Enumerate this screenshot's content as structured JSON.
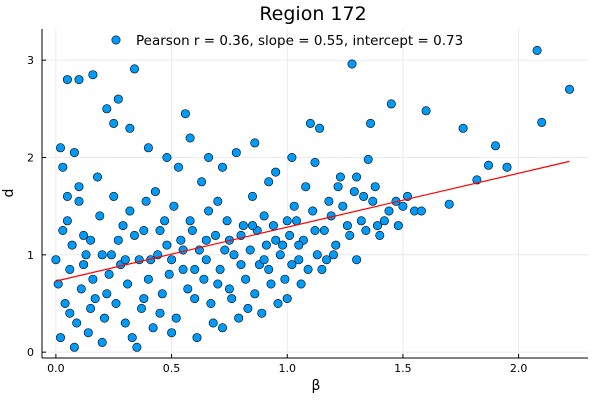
{
  "chart_data": {
    "type": "scatter",
    "title": "Region 172",
    "xlabel": "β",
    "ylabel": "d",
    "xlim": [
      -0.06,
      2.3
    ],
    "ylim": [
      -0.06,
      3.32
    ],
    "xticks": [
      0,
      0.5,
      1,
      1.5,
      2
    ],
    "xtick_labels": [
      "0.0",
      "0.5",
      "1.0",
      "1.5",
      "2.0"
    ],
    "yticks": [
      0,
      1,
      2,
      3
    ],
    "ytick_labels": [
      "0",
      "1",
      "2",
      "3"
    ],
    "grid": true,
    "legend_position": "top",
    "colors": {
      "points": "#009af9",
      "fit_line": "#ff0000"
    },
    "series": [
      {
        "name": "Pearson r = 0.36, slope = 0.55, intercept = 0.73",
        "kind": "scatter",
        "points": [
          [
            2.08,
            3.1
          ],
          [
            2.22,
            2.7
          ],
          [
            1.28,
            2.96
          ],
          [
            0.34,
            2.91
          ],
          [
            0.05,
            2.8
          ],
          [
            0.1,
            2.8
          ],
          [
            0.16,
            2.85
          ],
          [
            2.1,
            2.36
          ],
          [
            1.45,
            2.55
          ],
          [
            1.6,
            2.48
          ],
          [
            1.76,
            2.3
          ],
          [
            0.27,
            2.6
          ],
          [
            0.22,
            2.5
          ],
          [
            0.56,
            2.45
          ],
          [
            1.9,
            2.12
          ],
          [
            1.87,
            1.92
          ],
          [
            1.95,
            1.9
          ],
          [
            1.82,
            1.77
          ],
          [
            1.7,
            1.52
          ],
          [
            1.55,
            1.45
          ],
          [
            1.47,
            1.55
          ],
          [
            1.39,
            1.3
          ],
          [
            1.38,
            1.7
          ],
          [
            1.36,
            2.35
          ],
          [
            1.35,
            1.98
          ],
          [
            1.1,
            2.35
          ],
          [
            1.14,
            2.3
          ],
          [
            0.02,
            2.1
          ],
          [
            0.0,
            0.95
          ],
          [
            0.01,
            0.7
          ],
          [
            0.03,
            1.9
          ],
          [
            0.05,
            1.35
          ],
          [
            0.08,
            2.05
          ],
          [
            0.1,
            1.55
          ],
          [
            0.12,
            1.2
          ],
          [
            0.15,
            0.45
          ],
          [
            0.18,
            1.8
          ],
          [
            0.2,
            0.1
          ],
          [
            0.22,
            0.6
          ],
          [
            0.25,
            1.6
          ],
          [
            0.28,
            0.9
          ],
          [
            0.3,
            0.3
          ],
          [
            0.32,
            1.45
          ],
          [
            0.35,
            0.05
          ],
          [
            0.38,
            1.25
          ],
          [
            0.4,
            0.75
          ],
          [
            0.43,
            1.65
          ],
          [
            0.45,
            0.4
          ],
          [
            0.48,
            1.1
          ],
          [
            0.5,
            0.2
          ],
          [
            0.53,
            1.9
          ],
          [
            0.55,
            0.85
          ],
          [
            0.58,
            1.35
          ],
          [
            0.6,
            0.55
          ],
          [
            0.63,
            1.75
          ],
          [
            0.65,
            0.95
          ],
          [
            0.68,
            0.3
          ],
          [
            0.7,
            1.55
          ],
          [
            0.73,
            1.05
          ],
          [
            0.75,
            0.65
          ],
          [
            0.78,
            2.05
          ],
          [
            0.8,
            1.2
          ],
          [
            0.83,
            0.45
          ],
          [
            0.85,
            1.6
          ],
          [
            0.88,
            0.9
          ],
          [
            0.9,
            1.4
          ],
          [
            0.93,
            0.7
          ],
          [
            0.95,
            1.85
          ],
          [
            0.98,
            1.1
          ],
          [
            1.0,
            0.55
          ],
          [
            1.03,
            1.5
          ],
          [
            1.05,
            0.95
          ],
          [
            1.08,
            1.7
          ],
          [
            1.12,
            1.25
          ],
          [
            1.15,
            0.85
          ],
          [
            1.18,
            1.55
          ],
          [
            1.2,
            1.0
          ],
          [
            1.23,
            1.8
          ],
          [
            1.26,
            1.3
          ],
          [
            1.3,
            0.95
          ],
          [
            1.33,
            1.6
          ],
          [
            1.42,
            1.35
          ],
          [
            1.5,
            1.5
          ],
          [
            1.58,
            1.45
          ],
          [
            0.02,
            0.15
          ],
          [
            0.04,
            0.5
          ],
          [
            0.06,
            0.85
          ],
          [
            0.07,
            1.1
          ],
          [
            0.09,
            0.3
          ],
          [
            0.11,
            0.65
          ],
          [
            0.13,
            1.0
          ],
          [
            0.14,
            0.2
          ],
          [
            0.16,
            0.75
          ],
          [
            0.19,
            1.4
          ],
          [
            0.21,
            0.35
          ],
          [
            0.24,
            1.0
          ],
          [
            0.26,
            0.5
          ],
          [
            0.29,
            1.3
          ],
          [
            0.31,
            0.7
          ],
          [
            0.33,
            0.15
          ],
          [
            0.36,
            0.95
          ],
          [
            0.37,
            0.45
          ],
          [
            0.39,
            1.55
          ],
          [
            0.42,
            0.25
          ],
          [
            0.44,
            1.0
          ],
          [
            0.46,
            0.6
          ],
          [
            0.47,
            1.35
          ],
          [
            0.49,
            0.8
          ],
          [
            0.51,
            1.5
          ],
          [
            0.52,
            0.35
          ],
          [
            0.54,
            1.15
          ],
          [
            0.57,
            0.65
          ],
          [
            0.59,
            1.25
          ],
          [
            0.61,
            0.15
          ],
          [
            0.62,
            1.05
          ],
          [
            0.64,
            0.75
          ],
          [
            0.66,
            1.45
          ],
          [
            0.67,
            0.5
          ],
          [
            0.69,
            1.2
          ],
          [
            0.71,
            0.85
          ],
          [
            0.72,
            0.25
          ],
          [
            0.74,
            1.35
          ],
          [
            0.76,
            0.55
          ],
          [
            0.77,
            1.0
          ],
          [
            0.79,
            0.35
          ],
          [
            0.81,
            1.3
          ],
          [
            0.82,
            0.75
          ],
          [
            0.84,
            1.05
          ],
          [
            0.86,
            0.6
          ],
          [
            0.87,
            1.25
          ],
          [
            0.89,
            0.4
          ],
          [
            0.91,
            1.1
          ],
          [
            0.92,
            0.85
          ],
          [
            0.94,
            1.3
          ],
          [
            0.96,
            0.5
          ],
          [
            0.97,
            1.0
          ],
          [
            0.99,
            0.75
          ],
          [
            1.01,
            1.2
          ],
          [
            1.02,
            0.9
          ],
          [
            1.04,
            1.35
          ],
          [
            1.06,
            0.7
          ],
          [
            1.07,
            1.15
          ],
          [
            1.09,
            0.85
          ],
          [
            1.11,
            1.45
          ],
          [
            1.13,
            1.0
          ],
          [
            1.16,
            1.25
          ],
          [
            1.17,
            0.95
          ],
          [
            1.19,
            1.4
          ],
          [
            1.21,
            1.1
          ],
          [
            1.24,
            1.5
          ],
          [
            1.27,
            1.2
          ],
          [
            1.29,
            1.65
          ],
          [
            1.32,
            1.35
          ],
          [
            1.34,
            1.25
          ],
          [
            1.37,
            1.55
          ],
          [
            1.4,
            1.2
          ],
          [
            1.44,
            1.45
          ],
          [
            1.48,
            1.3
          ],
          [
            1.52,
            1.6
          ],
          [
            0.03,
            1.25
          ],
          [
            0.05,
            1.6
          ],
          [
            0.06,
            0.4
          ],
          [
            0.08,
            0.05
          ],
          [
            0.1,
            1.7
          ],
          [
            0.12,
            0.9
          ],
          [
            0.15,
            1.15
          ],
          [
            0.17,
            0.55
          ],
          [
            0.2,
            1.0
          ],
          [
            0.23,
            0.8
          ],
          [
            0.27,
            1.15
          ],
          [
            0.3,
            0.95
          ],
          [
            0.34,
            1.2
          ],
          [
            0.38,
            0.55
          ],
          [
            0.41,
            0.95
          ],
          [
            0.45,
            1.25
          ],
          [
            0.5,
            0.95
          ],
          [
            0.55,
            1.05
          ],
          [
            0.6,
            0.85
          ],
          [
            0.65,
            1.15
          ],
          [
            0.7,
            0.7
          ],
          [
            0.75,
            1.15
          ],
          [
            0.8,
            0.9
          ],
          [
            0.85,
            1.3
          ],
          [
            0.9,
            0.95
          ],
          [
            0.95,
            1.15
          ],
          [
            1.0,
            1.35
          ],
          [
            1.05,
            1.1
          ],
          [
            0.25,
            2.35
          ],
          [
            0.32,
            2.3
          ],
          [
            0.4,
            2.1
          ],
          [
            0.48,
            2.0
          ],
          [
            0.58,
            2.2
          ],
          [
            0.66,
            2.0
          ],
          [
            0.72,
            1.9
          ],
          [
            0.86,
            2.15
          ],
          [
            0.92,
            1.75
          ],
          [
            1.02,
            2.0
          ],
          [
            1.12,
            1.95
          ],
          [
            1.22,
            1.7
          ],
          [
            1.3,
            1.8
          ]
        ]
      },
      {
        "kind": "line",
        "x": [
          0.0,
          2.22
        ],
        "y": [
          0.73,
          1.96
        ]
      }
    ]
  }
}
